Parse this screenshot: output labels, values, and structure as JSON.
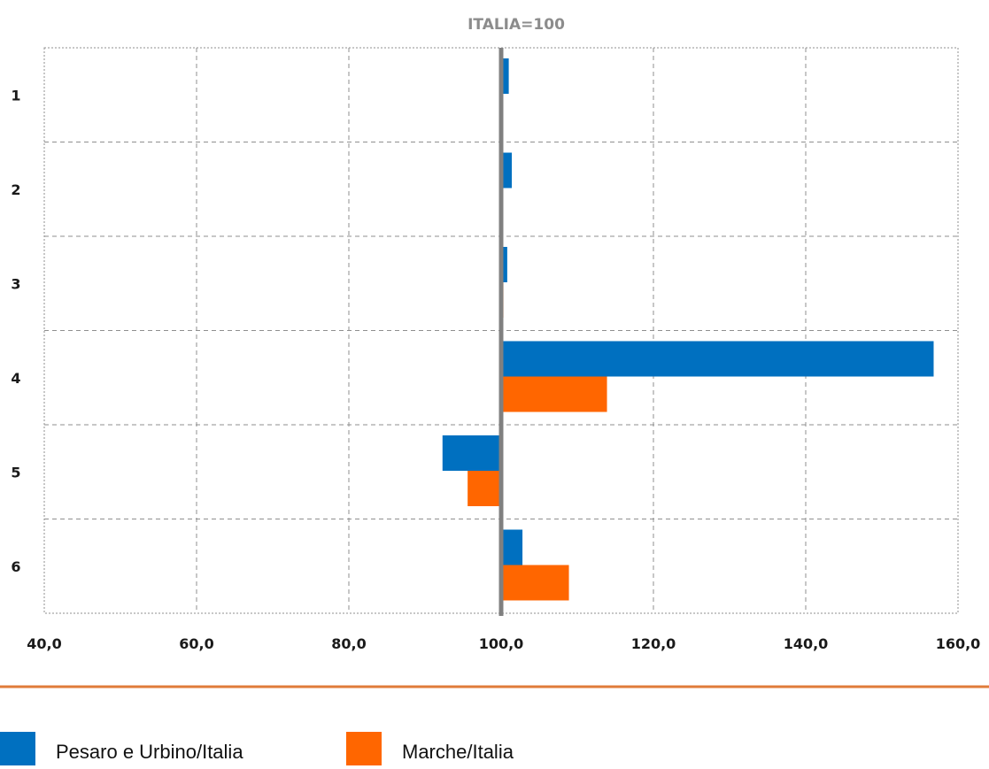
{
  "chart_data": {
    "type": "bar",
    "orientation": "horizontal",
    "title": "ITALIA=100",
    "categories": [
      "1",
      "2",
      "3",
      "4",
      "5",
      "6"
    ],
    "baseline": 100,
    "xlim": [
      40,
      160
    ],
    "x_ticks": [
      40,
      60,
      80,
      100,
      120,
      140,
      160
    ],
    "x_tick_labels": [
      "40,0",
      "60,0",
      "80,0",
      "100,0",
      "120,0",
      "140,0",
      "160,0"
    ],
    "grid": true,
    "legend_position": "bottom",
    "series": [
      {
        "name": "Pesaro e Urbino/Italia",
        "color": "#0070c0",
        "values": [
          101.0,
          101.4,
          100.8,
          156.8,
          92.3,
          102.8
        ]
      },
      {
        "name": "Marche/Italia",
        "color": "#ff6600",
        "values": [
          100.2,
          100.2,
          100.3,
          113.9,
          95.6,
          108.9
        ]
      }
    ],
    "colors": {
      "baseline_line": "#808080",
      "grid": "#8f8f8f",
      "separator": "#e07b39"
    }
  }
}
